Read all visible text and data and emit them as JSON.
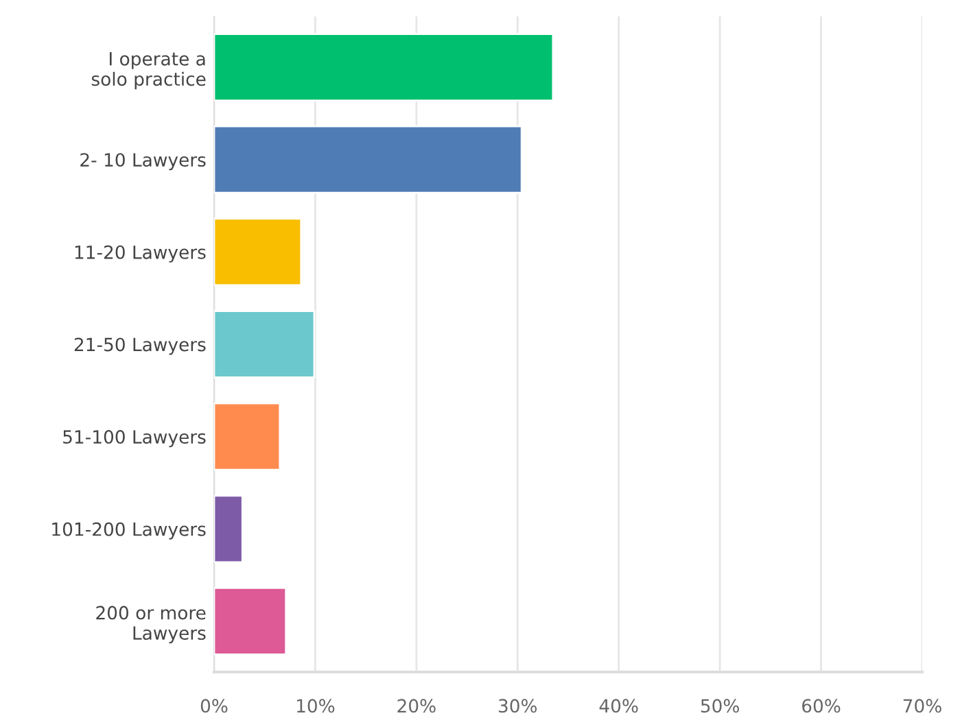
{
  "chart_data": {
    "type": "bar",
    "orientation": "horizontal",
    "categories": [
      "I operate a\nsolo practice",
      "2- 10 Lawyers",
      "11-20 Lawyers",
      "21-50 Lawyers",
      "51-100 Lawyers",
      "101-200 Lawyers",
      "200 or more\nLawyers"
    ],
    "values": [
      33.5,
      30.4,
      8.6,
      9.9,
      6.5,
      2.8,
      7.1
    ],
    "colors": [
      "#00bf6f",
      "#507cb6",
      "#f9be00",
      "#6bc8cd",
      "#ff8b4f",
      "#7d5ba6",
      "#dd5a96"
    ],
    "xlim": [
      0,
      70
    ],
    "xticks": [
      {
        "value": 0,
        "label": "0%"
      },
      {
        "value": 10,
        "label": "10%"
      },
      {
        "value": 20,
        "label": "20%"
      },
      {
        "value": 30,
        "label": "30%"
      },
      {
        "value": 40,
        "label": "40%"
      },
      {
        "value": 50,
        "label": "50%"
      },
      {
        "value": 60,
        "label": "60%"
      },
      {
        "value": 70,
        "label": "70%"
      }
    ],
    "grid": "x"
  }
}
